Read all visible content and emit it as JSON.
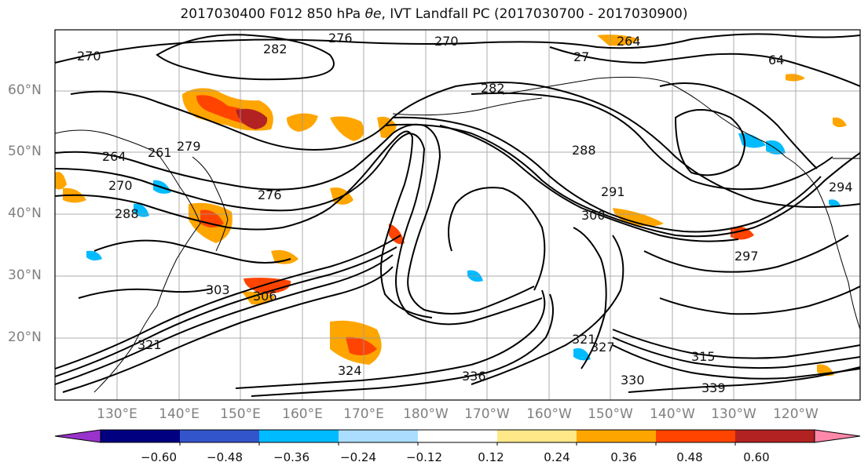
{
  "title": {
    "prefix": "2017030400 F012 850 hPa ",
    "theta_e": "θe",
    "suffix": ", IVT Landfall PC (2017030700 - 2017030900)"
  },
  "lat_labels": [
    "60°N",
    "50°N",
    "40°N",
    "30°N",
    "20°N"
  ],
  "lon_labels": [
    "130°E",
    "140°E",
    "150°E",
    "160°E",
    "170°E",
    "180°W",
    "170°W",
    "160°W",
    "150°W",
    "140°W",
    "130°W",
    "120°W"
  ],
  "contour_labels": [
    "270",
    "282",
    "276",
    "270",
    "264",
    "64",
    "27",
    "282",
    "288",
    "291",
    "297",
    "300",
    "294",
    "264",
    "261",
    "279",
    "270",
    "276",
    "288",
    "303",
    "306",
    "324",
    "321",
    "336",
    "339",
    "315",
    "330",
    "327",
    "321"
  ],
  "colorbar": {
    "colors": [
      "#9933cc",
      "#000080",
      "#3355cc",
      "#00bbff",
      "#aaddff",
      "#ffffff",
      "#ffe888",
      "#ffa500",
      "#ff4400",
      "#b22222",
      "#ff88aa"
    ],
    "tick_labels": [
      "−0.60",
      "−0.48",
      "−0.36",
      "−0.24",
      "−0.12",
      "0.12",
      "0.24",
      "0.36",
      "0.48",
      "0.60"
    ]
  },
  "shading_colors": {
    "orange": "#ffa500",
    "red_orange": "#ff4400",
    "yellow": "#ffe888",
    "light_blue": "#aaddff",
    "cyan": "#00bbff"
  }
}
